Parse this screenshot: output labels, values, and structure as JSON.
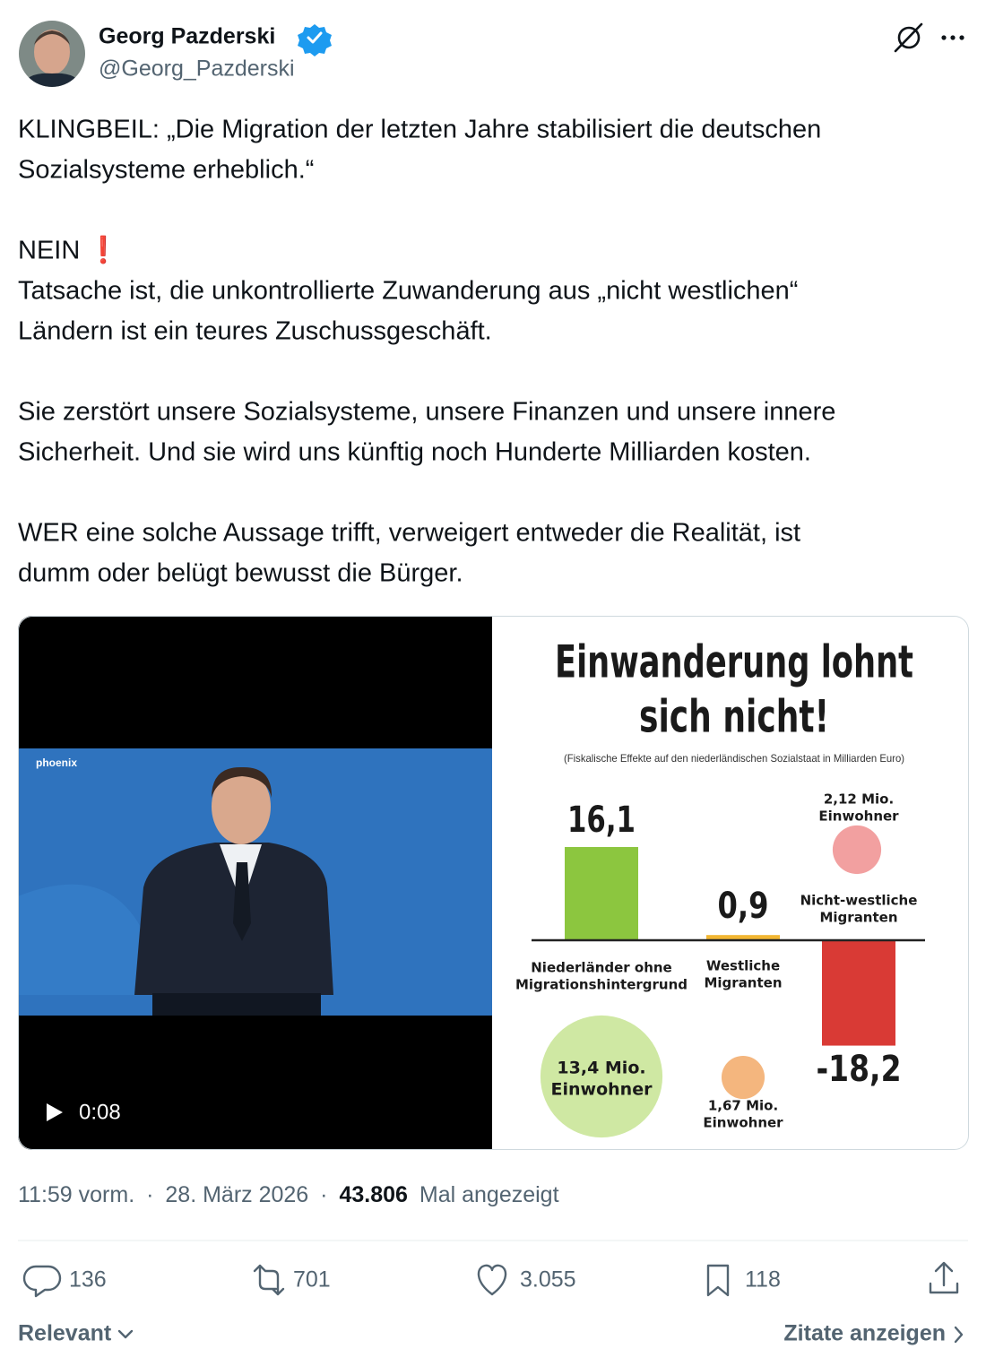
{
  "author": {
    "name": "Georg Pazderski",
    "handle": "@Georg_Pazderski"
  },
  "tweet": {
    "paragraphs": [
      [
        "KLINGBEIL: „Die Migration der letzten Jahre stabilisiert die deutschen",
        "Sozialsysteme erheblich.“"
      ],
      [
        "NEIN ❗",
        "Tatsache ist, die unkontrollierte Zuwanderung aus „nicht westlichen“",
        "Ländern ist ein teures Zuschussgeschäft."
      ],
      [
        "Sie zerstört unsere Sozialsysteme, unsere Finanzen und unsere innere",
        "Sicherheit. Und sie wird uns künftig noch Hunderte Milliarden kosten."
      ],
      [
        "WER eine solche Aussage trifft, verweigert entweder die Realität, ist",
        "dumm oder belügt bewusst die Bürger."
      ]
    ]
  },
  "video": {
    "channel": "phoenix",
    "duration": "0:08"
  },
  "infographic": {
    "title": [
      "Einwanderung lohnt",
      "sich nicht!"
    ],
    "subtitle": "(Fiskalische Effekte auf den niederländischen Sozialstaat in Milliarden Euro)",
    "chart_data": {
      "type": "bar",
      "categories": [
        [
          "Niederländer ohne",
          "Migrationshintergrund"
        ],
        [
          "Westliche",
          "Migranten"
        ],
        [
          "Nicht-westliche",
          "Migranten"
        ]
      ],
      "values": [
        16.1,
        0.9,
        -18.2
      ],
      "value_labels": [
        "16,1",
        "0,9",
        "-18,2"
      ],
      "colors": [
        "#8cc63f",
        "#f2b632",
        "#d93a35"
      ],
      "population": [
        13.4,
        1.67,
        2.12
      ],
      "population_labels": [
        [
          "13,4 Mio.",
          "Einwohner"
        ],
        [
          "1,67 Mio.",
          "Einwohner"
        ],
        [
          "2,12 Mio.",
          "Einwohner"
        ]
      ],
      "population_colors": [
        "#cfe8a3",
        "#f4b67e",
        "#f2a0a0"
      ]
    }
  },
  "meta": {
    "time": "11:59 vorm.",
    "separator": "·",
    "date": "28. März 2026",
    "views": "43.806",
    "views_label": "Mal angezeigt"
  },
  "actions": {
    "replies": "136",
    "reposts": "701",
    "likes": "3.055",
    "bookmarks": "118"
  },
  "footer": {
    "sort": "Relevant",
    "quotes": "Zitate anzeigen"
  }
}
